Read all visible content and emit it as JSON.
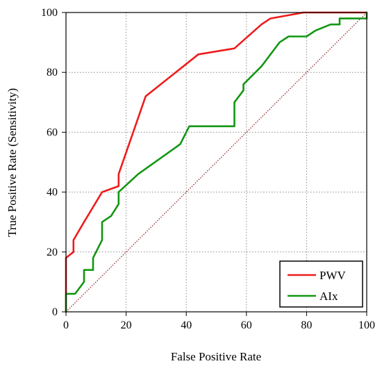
{
  "chart_data": {
    "type": "line",
    "xlabel": "False Positive Rate",
    "ylabel": "True Positive Rate (Sensitivity)",
    "xlim": [
      0,
      100
    ],
    "ylim": [
      0,
      100
    ],
    "x_ticks": [
      0,
      20,
      40,
      60,
      80,
      100
    ],
    "y_ticks": [
      0,
      20,
      40,
      60,
      80,
      100
    ],
    "grid": true,
    "legend_position": "bottom-right",
    "reference_line": {
      "points": [
        [
          0,
          0
        ],
        [
          100,
          100
        ]
      ],
      "color": "#8b1a1a",
      "style": "dotted"
    },
    "series": [
      {
        "name": "PWV",
        "color": "#ee1c1c",
        "points": [
          [
            0,
            0
          ],
          [
            0,
            18
          ],
          [
            2.5,
            20
          ],
          [
            2.5,
            24
          ],
          [
            6,
            30
          ],
          [
            12,
            40
          ],
          [
            17.5,
            42
          ],
          [
            17.5,
            46
          ],
          [
            26.5,
            72
          ],
          [
            44,
            86
          ],
          [
            56,
            88
          ],
          [
            65,
            96
          ],
          [
            68,
            98
          ],
          [
            79,
            100
          ],
          [
            100,
            100
          ]
        ]
      },
      {
        "name": "AIx",
        "color": "#129612",
        "points": [
          [
            0,
            0
          ],
          [
            0,
            6
          ],
          [
            3,
            6
          ],
          [
            6,
            10
          ],
          [
            6,
            14
          ],
          [
            9,
            14
          ],
          [
            9,
            18
          ],
          [
            12,
            24
          ],
          [
            12,
            30
          ],
          [
            15,
            32
          ],
          [
            17.5,
            36
          ],
          [
            17.5,
            40
          ],
          [
            24,
            46
          ],
          [
            38,
            56
          ],
          [
            41,
            62
          ],
          [
            56,
            62
          ],
          [
            56,
            70
          ],
          [
            59,
            74
          ],
          [
            59,
            76
          ],
          [
            65,
            82
          ],
          [
            71,
            90
          ],
          [
            74,
            92
          ],
          [
            80,
            92
          ],
          [
            83,
            94
          ],
          [
            88,
            96
          ],
          [
            91,
            96
          ],
          [
            91,
            98
          ],
          [
            100,
            98
          ],
          [
            100,
            100
          ]
        ]
      }
    ]
  }
}
